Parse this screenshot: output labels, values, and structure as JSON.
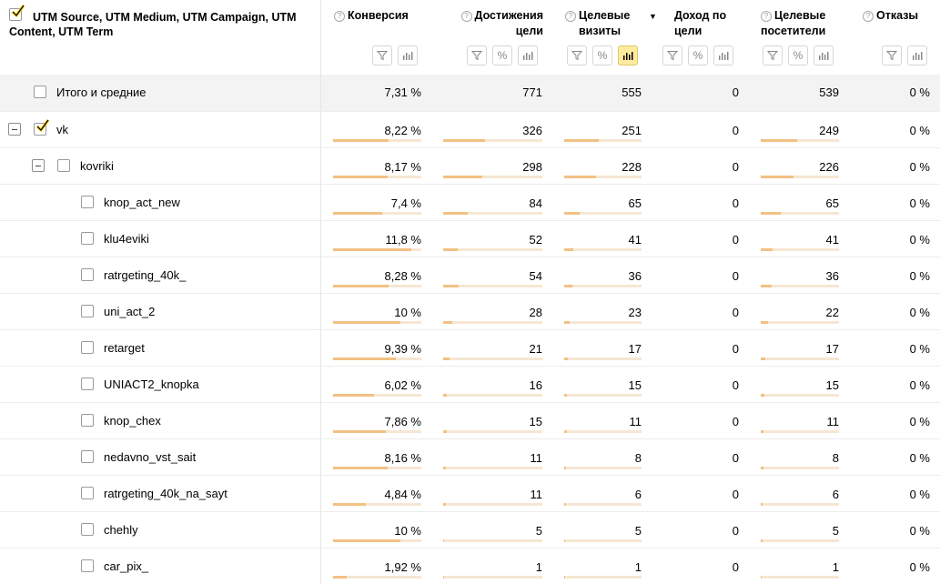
{
  "header": {
    "dimension_title": "UTM Source, UTM Medium, UTM Campaign, UTM Content, UTM Term",
    "columns": [
      {
        "title": "Конверсия",
        "help": true,
        "tools": [
          "filter",
          "chart"
        ]
      },
      {
        "title": "Достижения цели",
        "help": true,
        "tools": [
          "filter",
          "percent",
          "chart"
        ]
      },
      {
        "title": "Целевые визиты",
        "help": true,
        "sort": "▼",
        "tools": [
          "filter",
          "percent",
          "chart-active"
        ]
      },
      {
        "title": "Доход по цели",
        "help": false,
        "tools": [
          "filter",
          "percent",
          "chart"
        ]
      },
      {
        "title": "Целевые посетители",
        "help": true,
        "tools": [
          "filter",
          "percent",
          "chart"
        ]
      },
      {
        "title": "Отказы",
        "help": true,
        "tools": [
          "filter",
          "chart"
        ]
      }
    ]
  },
  "accent_colors": {
    "bar_fill": "#f2c183",
    "bar_track": "#f6e7d2",
    "active_button": "#ffeba0",
    "checkbox_tick": "#f5c400"
  },
  "rows": [
    {
      "label": "Итого и средние",
      "level": "total",
      "conv": "7,31 %",
      "goals": "771",
      "visits": "555",
      "revenue": "0",
      "visitors": "539",
      "bounce": "0 %"
    },
    {
      "label": "vk",
      "level": 0,
      "expand": true,
      "checked": true,
      "conv": "8,22 %",
      "goals": "326",
      "visits": "251",
      "revenue": "0",
      "visitors": "249",
      "bounce": "0 %",
      "bars": [
        0.63,
        0.42,
        0.45,
        0.46
      ]
    },
    {
      "label": "kovriki",
      "level": 1,
      "expand": true,
      "checked": false,
      "conv": "8,17 %",
      "goals": "298",
      "visits": "228",
      "revenue": "0",
      "visitors": "226",
      "bounce": "0 %",
      "bars": [
        0.62,
        0.39,
        0.41,
        0.42
      ]
    },
    {
      "label": "knop_act_new",
      "level": 2,
      "conv": "7,4 %",
      "goals": "84",
      "visits": "65",
      "revenue": "0",
      "visitors": "65",
      "bounce": "0 %",
      "bars": [
        0.56,
        0.25,
        0.2,
        0.26
      ]
    },
    {
      "label": "klu4eviki",
      "level": 2,
      "conv": "11,8 %",
      "goals": "52",
      "visits": "41",
      "revenue": "0",
      "visitors": "41",
      "bounce": "0 %",
      "bars": [
        0.89,
        0.15,
        0.12,
        0.15
      ]
    },
    {
      "label": "ratrgeting_40k_",
      "level": 2,
      "conv": "8,28 %",
      "goals": "54",
      "visits": "36",
      "revenue": "0",
      "visitors": "36",
      "bounce": "0 %",
      "bars": [
        0.63,
        0.16,
        0.11,
        0.14
      ]
    },
    {
      "label": "uni_act_2",
      "level": 2,
      "conv": "10 %",
      "goals": "28",
      "visits": "23",
      "revenue": "0",
      "visitors": "22",
      "bounce": "0 %",
      "bars": [
        0.76,
        0.09,
        0.07,
        0.09
      ]
    },
    {
      "label": "retarget",
      "level": 2,
      "conv": "9,39 %",
      "goals": "21",
      "visits": "17",
      "revenue": "0",
      "visitors": "17",
      "bounce": "0 %",
      "bars": [
        0.71,
        0.06,
        0.05,
        0.06
      ]
    },
    {
      "label": "UNIACT2_knopka",
      "level": 2,
      "conv": "6,02 %",
      "goals": "16",
      "visits": "15",
      "revenue": "0",
      "visitors": "15",
      "bounce": "0 %",
      "bars": [
        0.46,
        0.04,
        0.04,
        0.05
      ]
    },
    {
      "label": "knop_chex",
      "level": 2,
      "conv": "7,86 %",
      "goals": "15",
      "visits": "11",
      "revenue": "0",
      "visitors": "11",
      "bounce": "0 %",
      "bars": [
        0.6,
        0.04,
        0.03,
        0.04
      ]
    },
    {
      "label": "nedavno_vst_sait",
      "level": 2,
      "conv": "8,16 %",
      "goals": "11",
      "visits": "8",
      "revenue": "0",
      "visitors": "8",
      "bounce": "0 %",
      "bars": [
        0.62,
        0.03,
        0.02,
        0.03
      ]
    },
    {
      "label": "ratrgeting_40k_na_sayt",
      "level": 2,
      "conv": "4,84 %",
      "goals": "11",
      "visits": "6",
      "revenue": "0",
      "visitors": "6",
      "bounce": "0 %",
      "bars": [
        0.37,
        0.03,
        0.02,
        0.02
      ]
    },
    {
      "label": "chehly",
      "level": 2,
      "conv": "10 %",
      "goals": "5",
      "visits": "5",
      "revenue": "0",
      "visitors": "5",
      "bounce": "0 %",
      "bars": [
        0.76,
        0.01,
        0.01,
        0.02
      ]
    },
    {
      "label": "car_pix_",
      "level": 2,
      "conv": "1,92 %",
      "goals": "1",
      "visits": "1",
      "revenue": "0",
      "visitors": "1",
      "bounce": "0 %",
      "bars": [
        0.15,
        0.005,
        0.005,
        0.005
      ]
    }
  ]
}
